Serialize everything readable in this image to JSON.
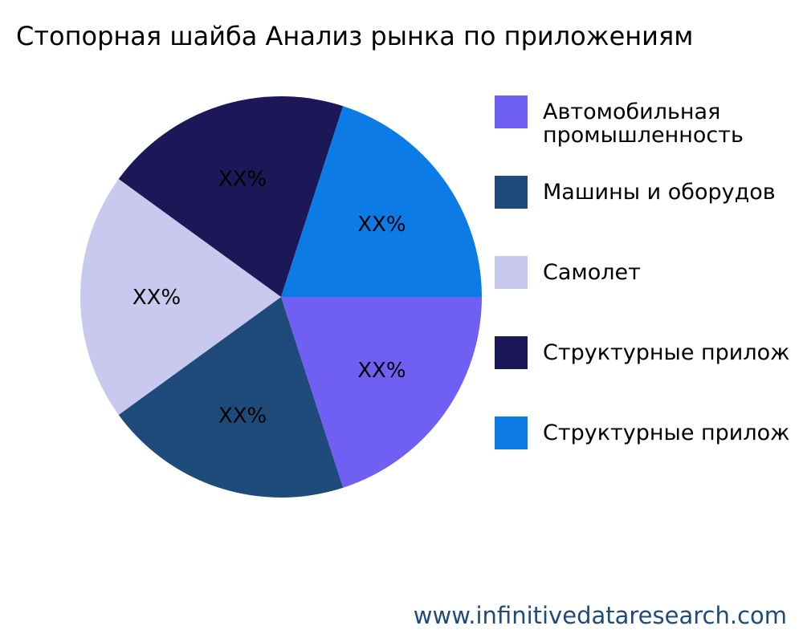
{
  "chart_data": {
    "type": "pie",
    "title": "Стопорная шайба Анализ рынка по приложениям",
    "start_angle_deg": 0,
    "direction": "clockwise",
    "slices": [
      {
        "name": "Автомобильная\nпромышленность",
        "value": 20,
        "label": "XX%",
        "color": "#6f5ff3"
      },
      {
        "name": "Машины и оборудов",
        "value": 20,
        "label": "XX%",
        "color": "#1f4b7a"
      },
      {
        "name": "Самолет",
        "value": 20,
        "label": "XX%",
        "color": "#c9c9f0"
      },
      {
        "name": "Структурные прилож",
        "value": 20,
        "label": "XX%",
        "color": "#1c1757"
      },
      {
        "name": "Структурные прилож",
        "value": 20,
        "label": "XX%",
        "color": "#0c7be6"
      }
    ],
    "legend_position": "right"
  },
  "watermark": "www.infinitivedataresearch.com"
}
